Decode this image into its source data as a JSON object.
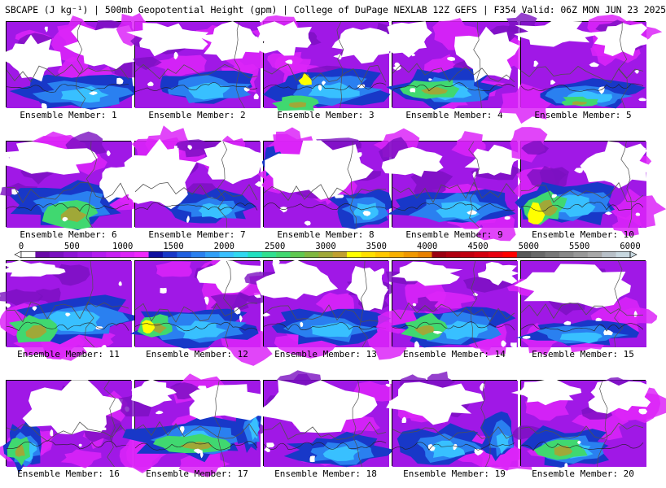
{
  "title": "SBCAPE (J kg⁻¹) | 500mb Geopotential Height (gpm) | College of DuPage NEXLAB 12Z GEFS | F354 Valid: 06Z MON JUN 23 2025",
  "label_prefix": "Ensemble Member: ",
  "members": [
    1,
    2,
    3,
    4,
    5,
    6,
    7,
    8,
    9,
    10,
    11,
    12,
    13,
    14,
    15,
    16,
    17,
    18,
    19,
    20
  ],
  "colorbar": {
    "ticks": [
      "0",
      "500",
      "1000",
      "1500",
      "2000",
      "2500",
      "3000",
      "3500",
      "4000",
      "4500",
      "5000",
      "5500",
      "6000"
    ],
    "range": [
      0,
      6000
    ],
    "colors": [
      "#ffffff",
      "#6a0aa8",
      "#7a10c0",
      "#8e14d6",
      "#a018e6",
      "#b41cf0",
      "#c820f4",
      "#dc24f8",
      "#f028fc",
      "#1010a0",
      "#1838c8",
      "#2060e0",
      "#2a80f0",
      "#30a0f8",
      "#38c0ff",
      "#30d8f0",
      "#20e0c0",
      "#30e090",
      "#40d870",
      "#60c850",
      "#80b840",
      "#a0a838",
      "#c0a030",
      "#ffff00",
      "#ffe000",
      "#ffc800",
      "#f8b000",
      "#f09800",
      "#e88000",
      "#9a0010",
      "#b00010",
      "#c00010",
      "#d40010",
      "#e80010",
      "#ff0000",
      "#585858",
      "#686868",
      "#787878",
      "#888888",
      "#989898",
      "#a8a8a8",
      "#b8c0c8",
      "#c8d8e0"
    ]
  },
  "palette": {
    "white": "#ffffff",
    "purple_low": "#7a10c0",
    "purple": "#a018e6",
    "magenta": "#dc24f8",
    "blue_dark": "#1838c8",
    "blue": "#2a80f0",
    "cyan": "#38c0ff",
    "green": "#40d870",
    "olive": "#a0a838",
    "yellow": "#ffff00",
    "coast": "#505050"
  }
}
